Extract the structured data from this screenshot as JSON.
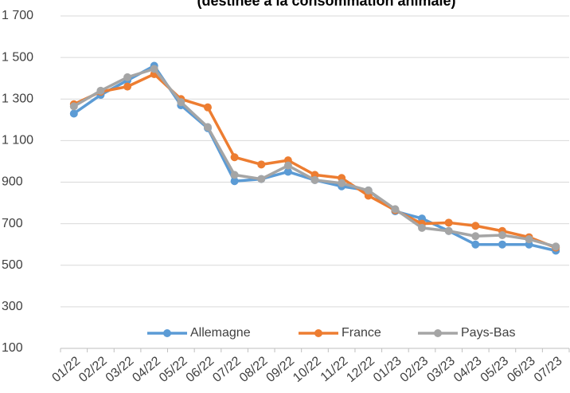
{
  "chart_data": {
    "type": "line",
    "title": "(destinée à la consommation animale)",
    "categories": [
      "01/22",
      "02/22",
      "03/22",
      "04/22",
      "05/22",
      "06/22",
      "07/22",
      "08/22",
      "09/22",
      "10/22",
      "11/22",
      "12/22",
      "01/23",
      "02/23",
      "03/23",
      "04/23",
      "05/23",
      "06/23",
      "07/23"
    ],
    "series": [
      {
        "name": "Allemagne",
        "color": "#5b9bd5",
        "values": [
          1230,
          1320,
          1390,
          1460,
          1270,
          1160,
          905,
          915,
          950,
          910,
          880,
          860,
          760,
          725,
          665,
          600,
          600,
          600,
          570
        ]
      },
      {
        "name": "France",
        "color": "#ed7d31",
        "values": [
          1275,
          1335,
          1360,
          1420,
          1300,
          1260,
          1020,
          985,
          1005,
          935,
          920,
          835,
          765,
          700,
          705,
          690,
          665,
          635,
          585
        ]
      },
      {
        "name": "Pays-Bas",
        "color": "#a5a5a5",
        "values": [
          1265,
          1340,
          1405,
          1445,
          1285,
          1165,
          935,
          915,
          980,
          910,
          895,
          860,
          770,
          680,
          665,
          640,
          645,
          625,
          590
        ]
      }
    ],
    "ylim": [
      100,
      1700
    ],
    "yticks": [
      100,
      300,
      500,
      700,
      900,
      {
        "value": 1100,
        "label": "1 100"
      },
      {
        "value": 1300,
        "label": "1 300"
      },
      {
        "value": 1500,
        "label": "1 500"
      },
      {
        "value": 1700,
        "label": "1 700"
      }
    ],
    "grid": true,
    "legend": "bottom"
  }
}
